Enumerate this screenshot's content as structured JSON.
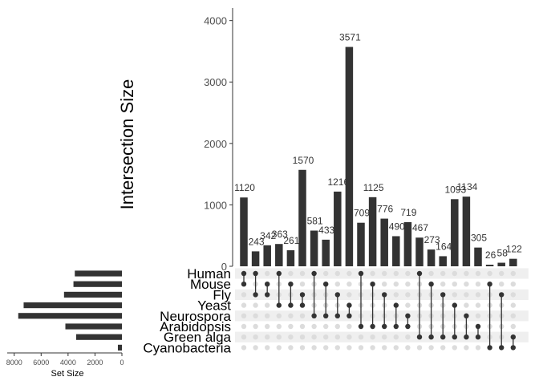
{
  "colors": {
    "bar": "#333333",
    "dot_active": "#333333",
    "dot_inactive": "#dcdcdc",
    "stripe": "#efefef",
    "axis": "#333333"
  },
  "chart_data": {
    "type": "bar",
    "subtype": "upset",
    "ylabel": "Intersection Size",
    "ylim": [
      0,
      4100
    ],
    "y_ticks": [
      0,
      1000,
      2000,
      3000,
      4000
    ],
    "set_size_xlabel": "Set Size",
    "set_size_ticks": [
      8000,
      6000,
      4000,
      2000,
      0
    ],
    "set_size_xlim": [
      8400,
      0
    ],
    "grid": false,
    "sets": [
      {
        "name": "Human",
        "size": 3500
      },
      {
        "name": "Mouse",
        "size": 3600
      },
      {
        "name": "Fly",
        "size": 4300
      },
      {
        "name": "Yeast",
        "size": 7300
      },
      {
        "name": "Neurospora",
        "size": 7700
      },
      {
        "name": "Arabidopsis",
        "size": 4200
      },
      {
        "name": "Green alga",
        "size": 3400
      },
      {
        "name": "Cyanobacteria",
        "size": 300
      }
    ],
    "intersections": [
      {
        "value": 1120,
        "label": "1120",
        "sets": [
          0,
          1
        ]
      },
      {
        "value": 243,
        "label": "243",
        "sets": [
          0,
          2
        ]
      },
      {
        "value": 342,
        "label": "342",
        "sets": [
          1,
          2
        ]
      },
      {
        "value": 363,
        "label": "363",
        "sets": [
          0,
          3
        ]
      },
      {
        "value": 261,
        "label": "261",
        "sets": [
          1,
          3
        ]
      },
      {
        "value": 1570,
        "label": "1570",
        "sets": [
          2,
          3
        ]
      },
      {
        "value": 581,
        "label": "581",
        "sets": [
          0,
          4
        ]
      },
      {
        "value": 433,
        "label": "433",
        "sets": [
          1,
          4
        ]
      },
      {
        "value": 1216,
        "label": "1216",
        "sets": [
          2,
          4
        ]
      },
      {
        "value": 3571,
        "label": "3571",
        "sets": [
          3,
          4
        ]
      },
      {
        "value": 709,
        "label": "709",
        "sets": [
          0,
          5
        ]
      },
      {
        "value": 1125,
        "label": "1125",
        "sets": [
          1,
          5
        ]
      },
      {
        "value": 776,
        "label": "776",
        "sets": [
          2,
          5
        ]
      },
      {
        "value": 490,
        "label": "490",
        "sets": [
          3,
          5
        ]
      },
      {
        "value": 719,
        "label": "719",
        "sets": [
          4,
          5
        ]
      },
      {
        "value": 467,
        "label": "467",
        "sets": [
          0,
          6
        ]
      },
      {
        "value": 273,
        "label": "273",
        "sets": [
          1,
          6
        ]
      },
      {
        "value": 164,
        "label": "164",
        "sets": [
          2,
          6
        ]
      },
      {
        "value": 1093,
        "label": "1093",
        "sets": [
          3,
          6
        ]
      },
      {
        "value": 1134,
        "label": "1134",
        "sets": [
          4,
          6
        ]
      },
      {
        "value": 305,
        "label": "305",
        "sets": [
          5,
          6
        ]
      },
      {
        "value": 26,
        "label": "26",
        "sets": [
          1,
          7
        ]
      },
      {
        "value": 58,
        "label": "58",
        "sets": [
          2,
          7
        ]
      },
      {
        "value": 122,
        "label": "122",
        "sets": [
          6,
          7
        ]
      }
    ]
  }
}
